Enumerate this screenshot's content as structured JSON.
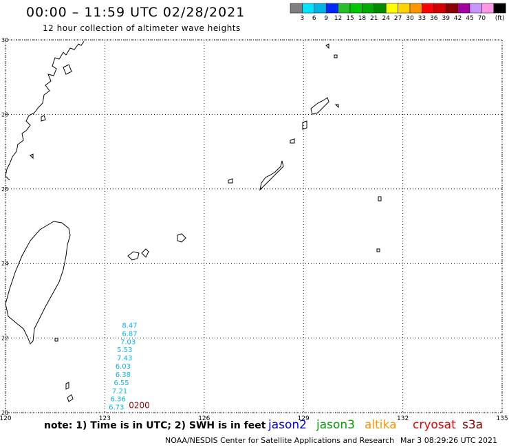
{
  "header": {
    "title": "00:00 – 11:59 UTC 02/28/2021",
    "subtitle": "12 hour collection of altimeter wave heights"
  },
  "legend": {
    "unit": "(ft)",
    "bins": [
      {
        "label": "",
        "color": "#7f7f7f"
      },
      {
        "label": "3",
        "color": "#00e5ff"
      },
      {
        "label": "6",
        "color": "#00b4e6"
      },
      {
        "label": "9",
        "color": "#0028ff"
      },
      {
        "label": "12",
        "color": "#2abe2a"
      },
      {
        "label": "15",
        "color": "#00c800"
      },
      {
        "label": "18",
        "color": "#00aa00"
      },
      {
        "label": "21",
        "color": "#008c00"
      },
      {
        "label": "24",
        "color": "#ffff00"
      },
      {
        "label": "27",
        "color": "#ffd200"
      },
      {
        "label": "30",
        "color": "#ff9600"
      },
      {
        "label": "33",
        "color": "#ff0000"
      },
      {
        "label": "36",
        "color": "#d20000"
      },
      {
        "label": "39",
        "color": "#8c0000"
      },
      {
        "label": "42",
        "color": "#a000a0"
      },
      {
        "label": "45",
        "color": "#c896ff"
      },
      {
        "label": "70",
        "color": "#ff96e6"
      },
      {
        "label": "",
        "color": "#000000"
      }
    ]
  },
  "map": {
    "lon_range": [
      120,
      135
    ],
    "lat_range": [
      20,
      30
    ],
    "lon_labels": [
      "120",
      "123",
      "126",
      "129",
      "132",
      "135"
    ],
    "lat_labels": [
      "30",
      "28",
      "26",
      "24",
      "22",
      "20"
    ],
    "wave_color": "#00b4e6",
    "time_color": "#8c0000"
  },
  "track": {
    "time_label": "0200",
    "points": [
      {
        "lon": 123.75,
        "lat": 22.28,
        "swh": "8.47"
      },
      {
        "lon": 123.75,
        "lat": 22.06,
        "swh": "6.87"
      },
      {
        "lon": 123.7,
        "lat": 21.84,
        "swh": "7.03"
      },
      {
        "lon": 123.6,
        "lat": 21.62,
        "swh": "5.53"
      },
      {
        "lon": 123.6,
        "lat": 21.4,
        "swh": "7.43"
      },
      {
        "lon": 123.55,
        "lat": 21.18,
        "swh": "6.03"
      },
      {
        "lon": 123.55,
        "lat": 20.96,
        "swh": "6.38"
      },
      {
        "lon": 123.5,
        "lat": 20.74,
        "swh": "6.55"
      },
      {
        "lon": 123.45,
        "lat": 20.52,
        "swh": "7.21"
      },
      {
        "lon": 123.4,
        "lat": 20.3,
        "swh": "6.36"
      },
      {
        "lon": 123.35,
        "lat": 20.08,
        "swh": "6.73"
      }
    ]
  },
  "footer": {
    "note": "note:  1) Time is in UTC;  2) SWH is in feet",
    "credit": "NOAA/NESDIS Center for Satellite Applications and Research",
    "date": "Mar  3 08:29:26 UTC 2021",
    "satellites": [
      {
        "name": "jason2",
        "color": "#0000e6"
      },
      {
        "name": "jason3",
        "color": "#00a000"
      },
      {
        "name": "altika",
        "color": "#ff9600"
      },
      {
        "name": "cryosat",
        "color": "#e60000"
      },
      {
        "name": "s3a",
        "color": "#8c0000"
      }
    ]
  }
}
